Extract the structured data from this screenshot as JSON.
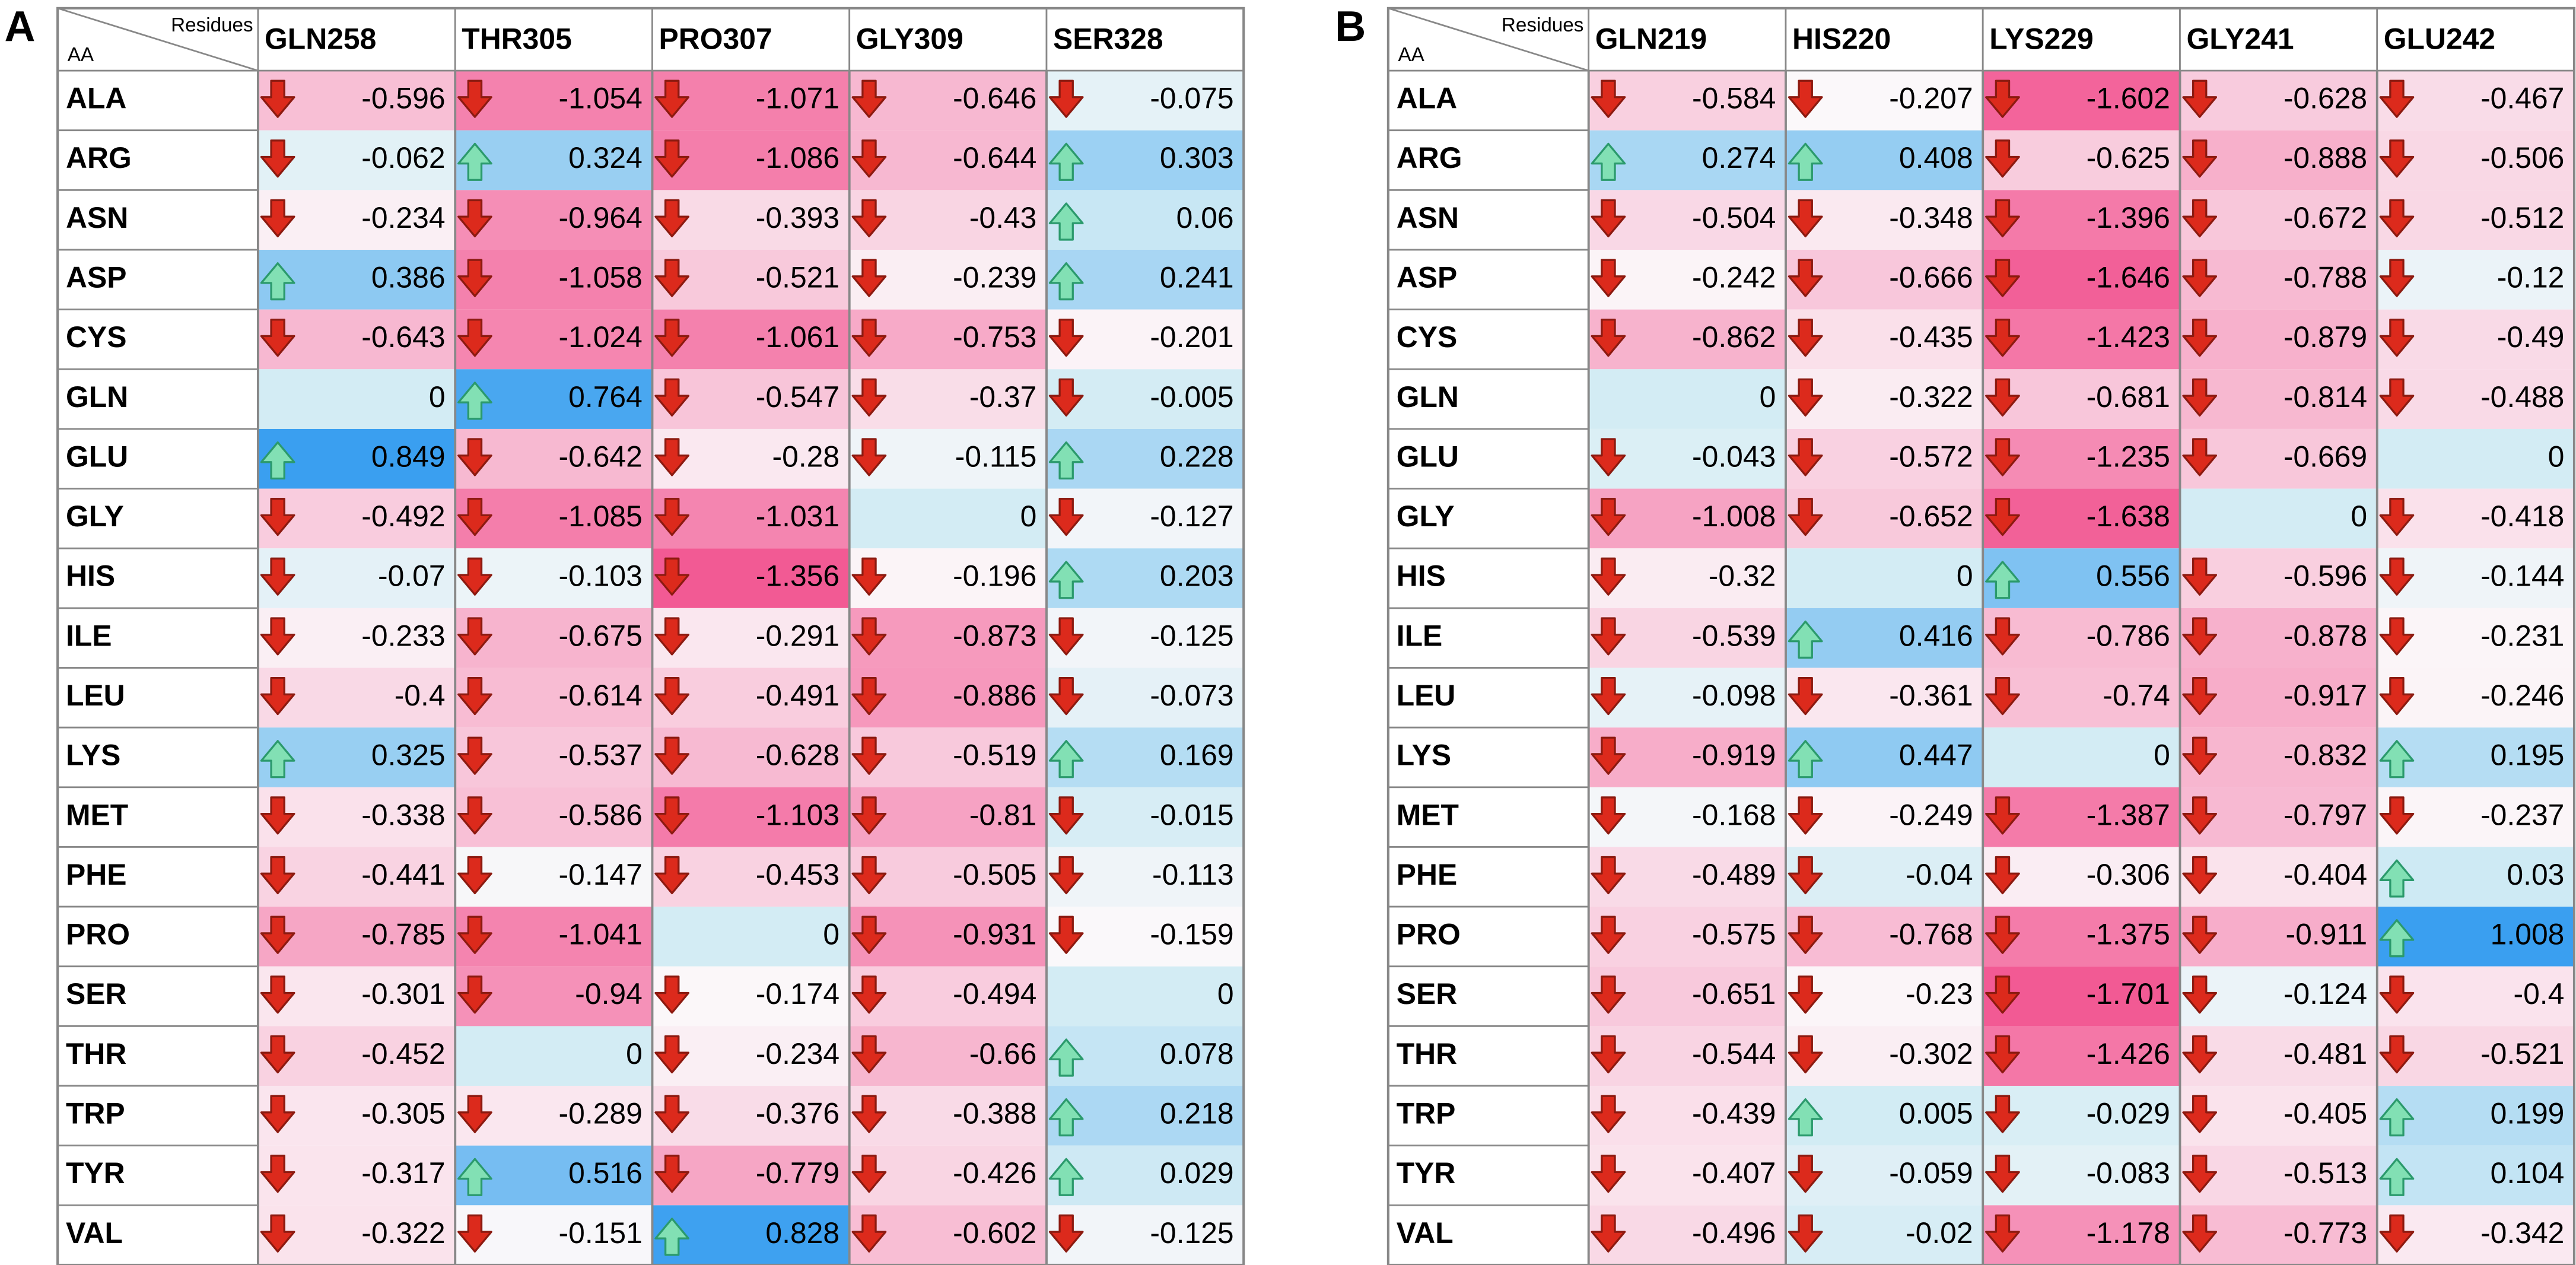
{
  "panels": [
    {
      "label": "A",
      "corner_top": "Residues",
      "corner_bottom": "AA",
      "columns": [
        "GLN258",
        "THR305",
        "PRO307",
        "GLY309",
        "SER328"
      ],
      "rows": [
        {
          "name": "ALA",
          "values": [
            -0.596,
            -1.054,
            -1.071,
            -0.646,
            -0.075
          ]
        },
        {
          "name": "ARG",
          "values": [
            -0.062,
            0.324,
            -1.086,
            -0.644,
            0.303
          ]
        },
        {
          "name": "ASN",
          "values": [
            -0.234,
            -0.964,
            -0.393,
            -0.43,
            0.06
          ]
        },
        {
          "name": "ASP",
          "values": [
            0.386,
            -1.058,
            -0.521,
            -0.239,
            0.241
          ]
        },
        {
          "name": "CYS",
          "values": [
            -0.643,
            -1.024,
            -1.061,
            -0.753,
            -0.201
          ]
        },
        {
          "name": "GLN",
          "values": [
            0,
            0.764,
            -0.547,
            -0.37,
            -0.005
          ]
        },
        {
          "name": "GLU",
          "values": [
            0.849,
            -0.642,
            -0.28,
            -0.115,
            0.228
          ]
        },
        {
          "name": "GLY",
          "values": [
            -0.492,
            -1.085,
            -1.031,
            0,
            -0.127
          ]
        },
        {
          "name": "HIS",
          "values": [
            -0.07,
            -0.103,
            -1.356,
            -0.196,
            0.203
          ]
        },
        {
          "name": "ILE",
          "values": [
            -0.233,
            -0.675,
            -0.291,
            -0.873,
            -0.125
          ]
        },
        {
          "name": "LEU",
          "values": [
            -0.4,
            -0.614,
            -0.491,
            -0.886,
            -0.073
          ]
        },
        {
          "name": "LYS",
          "values": [
            0.325,
            -0.537,
            -0.628,
            -0.519,
            0.169
          ]
        },
        {
          "name": "MET",
          "values": [
            -0.338,
            -0.586,
            -1.103,
            -0.81,
            -0.015
          ]
        },
        {
          "name": "PHE",
          "values": [
            -0.441,
            -0.147,
            -0.453,
            -0.505,
            -0.113
          ]
        },
        {
          "name": "PRO",
          "values": [
            -0.785,
            -1.041,
            0,
            -0.931,
            -0.159
          ]
        },
        {
          "name": "SER",
          "values": [
            -0.301,
            -0.94,
            -0.174,
            -0.494,
            0
          ]
        },
        {
          "name": "THR",
          "values": [
            -0.452,
            0,
            -0.234,
            -0.66,
            0.078
          ]
        },
        {
          "name": "TRP",
          "values": [
            -0.305,
            -0.289,
            -0.376,
            -0.388,
            0.218
          ]
        },
        {
          "name": "TYR",
          "values": [
            -0.317,
            0.516,
            -0.779,
            -0.426,
            0.029
          ]
        },
        {
          "name": "VAL",
          "values": [
            -0.322,
            -0.151,
            0.828,
            -0.602,
            -0.125
          ]
        }
      ]
    },
    {
      "label": "B",
      "corner_top": "Residues",
      "corner_bottom": "AA",
      "columns": [
        "GLN219",
        "HIS220",
        "LYS229",
        "GLY241",
        "GLU242"
      ],
      "rows": [
        {
          "name": "ALA",
          "values": [
            -0.584,
            -0.207,
            -1.602,
            -0.628,
            -0.467
          ]
        },
        {
          "name": "ARG",
          "values": [
            0.274,
            0.408,
            -0.625,
            -0.888,
            -0.506
          ]
        },
        {
          "name": "ASN",
          "values": [
            -0.504,
            -0.348,
            -1.396,
            -0.672,
            -0.512
          ]
        },
        {
          "name": "ASP",
          "values": [
            -0.242,
            -0.666,
            -1.646,
            -0.788,
            -0.12
          ]
        },
        {
          "name": "CYS",
          "values": [
            -0.862,
            -0.435,
            -1.423,
            -0.879,
            -0.49
          ]
        },
        {
          "name": "GLN",
          "values": [
            0,
            -0.322,
            -0.681,
            -0.814,
            -0.488
          ]
        },
        {
          "name": "GLU",
          "values": [
            -0.043,
            -0.572,
            -1.235,
            -0.669,
            0
          ]
        },
        {
          "name": "GLY",
          "values": [
            -1.008,
            -0.652,
            -1.638,
            0,
            -0.418
          ]
        },
        {
          "name": "HIS",
          "values": [
            -0.32,
            0,
            0.556,
            -0.596,
            -0.144
          ]
        },
        {
          "name": "ILE",
          "values": [
            -0.539,
            0.416,
            -0.786,
            -0.878,
            -0.231
          ]
        },
        {
          "name": "LEU",
          "values": [
            -0.098,
            -0.361,
            -0.74,
            -0.917,
            -0.246
          ]
        },
        {
          "name": "LYS",
          "values": [
            -0.919,
            0.447,
            0,
            -0.832,
            0.195
          ]
        },
        {
          "name": "MET",
          "values": [
            -0.168,
            -0.249,
            -1.387,
            -0.797,
            -0.237
          ]
        },
        {
          "name": "PHE",
          "values": [
            -0.489,
            -0.04,
            -0.306,
            -0.404,
            0.03
          ]
        },
        {
          "name": "PRO",
          "values": [
            -0.575,
            -0.768,
            -1.375,
            -0.911,
            1.008
          ]
        },
        {
          "name": "SER",
          "values": [
            -0.651,
            -0.23,
            -1.701,
            -0.124,
            -0.4
          ]
        },
        {
          "name": "THR",
          "values": [
            -0.544,
            -0.302,
            -1.426,
            -0.481,
            -0.521
          ]
        },
        {
          "name": "TRP",
          "values": [
            -0.439,
            0.005,
            -0.029,
            -0.405,
            0.199
          ]
        },
        {
          "name": "TYR",
          "values": [
            -0.407,
            -0.059,
            -0.083,
            -0.513,
            0.104
          ]
        },
        {
          "name": "VAL",
          "values": [
            -0.496,
            -0.02,
            -1.178,
            -0.773,
            -0.342
          ]
        }
      ]
    }
  ]
}
